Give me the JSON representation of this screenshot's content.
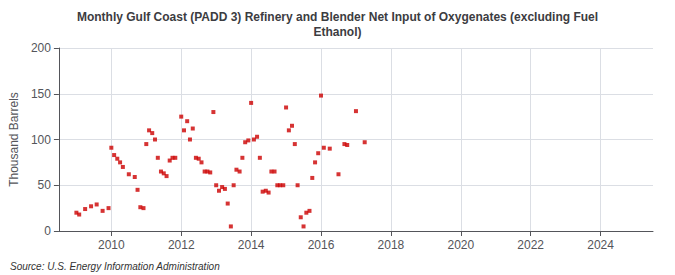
{
  "chart_data": {
    "type": "scatter",
    "title": "Monthly Gulf Coast (PADD 3) Refinery and Blender Net Input of Oxygenates (excluding Fuel\nEthanol)",
    "ylabel": "Thousand Barrels",
    "annotations": [
      "Source: U.S. Energy Information Administration"
    ],
    "color": "#cc0000",
    "marker": "square",
    "grid": true,
    "xlim": [
      2008.5,
      2025.5
    ],
    "ylim": [
      0,
      200
    ],
    "xticks": [
      2010,
      2012,
      2014,
      2016,
      2018,
      2020,
      2022,
      2024
    ],
    "yticks": [
      0,
      50,
      100,
      150,
      200
    ],
    "x": [
      2009.0,
      2009.08,
      2009.25,
      2009.42,
      2009.58,
      2009.75,
      2009.92,
      2010.0,
      2010.08,
      2010.17,
      2010.25,
      2010.33,
      2010.5,
      2010.67,
      2010.75,
      2010.83,
      2010.92,
      2011.0,
      2011.08,
      2011.17,
      2011.25,
      2011.33,
      2011.42,
      2011.5,
      2011.58,
      2011.67,
      2011.75,
      2011.83,
      2012.0,
      2012.08,
      2012.17,
      2012.25,
      2012.33,
      2012.42,
      2012.5,
      2012.58,
      2012.67,
      2012.75,
      2012.83,
      2012.92,
      2013.0,
      2013.08,
      2013.17,
      2013.25,
      2013.33,
      2013.42,
      2013.5,
      2013.58,
      2013.67,
      2013.75,
      2013.83,
      2013.92,
      2014.0,
      2014.08,
      2014.17,
      2014.25,
      2014.33,
      2014.42,
      2014.5,
      2014.58,
      2014.67,
      2014.75,
      2014.83,
      2014.92,
      2015.0,
      2015.08,
      2015.17,
      2015.25,
      2015.33,
      2015.42,
      2015.5,
      2015.58,
      2015.67,
      2015.75,
      2015.83,
      2015.92,
      2016.0,
      2016.08,
      2016.25,
      2016.5,
      2016.67,
      2016.75,
      2017.0,
      2017.25
    ],
    "values": [
      20,
      18,
      24,
      27,
      29,
      22,
      25,
      91,
      83,
      79,
      75,
      70,
      62,
      59,
      45,
      26,
      25,
      95,
      110,
      107,
      100,
      80,
      65,
      63,
      60,
      77,
      80,
      80,
      125,
      110,
      120,
      100,
      112,
      80,
      79,
      75,
      65,
      65,
      64,
      130,
      50,
      44,
      48,
      46,
      30,
      5,
      50,
      67,
      65,
      80,
      97,
      99,
      140,
      100,
      103,
      80,
      43,
      44,
      42,
      65,
      65,
      50,
      50,
      50,
      135,
      110,
      115,
      95,
      50,
      15,
      5,
      20,
      22,
      58,
      75,
      85,
      148,
      91,
      90,
      62,
      95,
      94,
      131,
      97
    ]
  }
}
